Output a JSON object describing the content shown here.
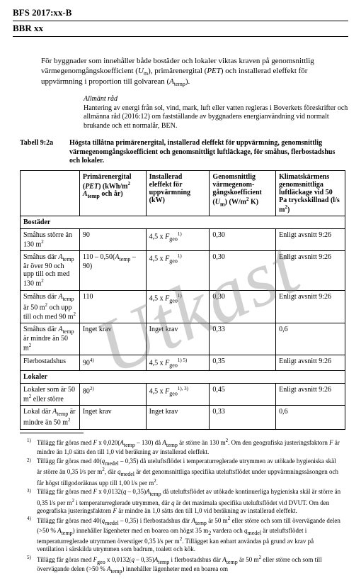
{
  "header": {
    "code": "BFS 2017:xx-B",
    "sub": "BBR xx"
  },
  "watermark": "Utkast",
  "intro": {
    "text": "För byggnader som innehåller både bostäder och lokaler viktas kraven på genomsnittlig värmegenomgångskoefficient (Um), primärenergital (PET) och installerad eleffekt för uppvärmning i proportion till golvarean (Atemp)."
  },
  "advice": {
    "title": "Allmänt råd",
    "body": "Hantering av energi från sol, vind, mark, luft eller vatten regleras i Boverkets föreskrifter och allmänna råd (2016:12) om fastställande av byggnadens energianvändning vid normalt brukande och ett normalår, BEN."
  },
  "table": {
    "label": "Tabell 9:2a",
    "caption": "Högsta tillåtna primärenergital, installerad eleffekt för uppvärmning, genomsnittlig värmegenomgångskoefficient och genomsnittligt luftläckage, för småhus, flerbostadshus och lokaler.",
    "headers": {
      "c1": "",
      "c2": "Primärenergital (PET) (kWh/m² Atemp och år)",
      "c3": "Installerad eleffekt för uppvärmning (kW)",
      "c4": "Genomsnittlig värmegenom­gångskoeffi­cient (Um) (W/m² K)",
      "c5": "Klimatskärmens genomsnittliga luftläckage vid 50 Pa tryck­skillnad (l/s m²)"
    },
    "sections": {
      "bostader": "Bostäder",
      "lokaler": "Lokaler"
    },
    "rows": [
      {
        "c1": "Småhus större än 130 m²",
        "c2": "90",
        "c3": "4,5 x Fgeo 1)",
        "c4": "0,30",
        "c5": "Enligt avsnitt 9:26"
      },
      {
        "c1": "Småhus där Atemp är över 90 och upp till och med 130 m²",
        "c2": "110 – 0,50(Atemp – 90)",
        "c3": "4,5 x Fgeo 1)",
        "c4": "0,30",
        "c5": "Enligt avsnitt 9:26"
      },
      {
        "c1": "Småhus där Atemp är 50 m² och upp till och med 90 m²",
        "c2": "110",
        "c3": "4,5 x Fgeo 1)",
        "c4": "0,30",
        "c5": "Enligt avsnitt 9:26"
      },
      {
        "c1": "Småhus där Atemp är mindre än 50 m²",
        "c2": "Inget krav",
        "c3": "Inget krav",
        "c4": "0,33",
        "c5": "0,6"
      },
      {
        "c1": "Flerbostadshus",
        "c2": "90 4)",
        "c3": "4,5 x Fgeo 1) 5)",
        "c4": "0,35",
        "c5": "Enligt avsnitt 9:26"
      }
    ],
    "rows2": [
      {
        "c1": "Lokaler som är 50 m² eller större",
        "c2": "80 2)",
        "c3": "4,5 x Fgeo 1), 3)",
        "c4": "0,45",
        "c5": "Enligt avsnitt 9:26"
      },
      {
        "c1": "Lokal där Atemp är mindre än 50 m²",
        "c2": "Inget krav",
        "c3": "Inget krav",
        "c4": "0,33",
        "c5": "0,6"
      }
    ]
  },
  "footnotes": {
    "n1": "Tillägg får göras med F x 0,020(Atemp – 130) då Atemp är större än 130 m². Om den geografiska justeringsfaktorn F är mindre än 1,0 sätts den till 1,0 vid beräkning av installerad eleffekt.",
    "n2": "Tillägg får göras med 40(qmedel – 0,35) då uteluftsflödet i temperaturreglerade utrymmen av utökade hygieniska skäl är större än 0,35 l/s per m², där qmedel är det genomsnittliga specifika uteluftsflödet under uppvärmningssäsongen och får högst tillgodoräknas upp till 1,00 l/s per m².",
    "n3": "Tillägg får göras med F x 0,0132(q – 0,35)Atemp då uteluftsflödet av utökade kontinuerliga hygieniska skäl är större än 0,35 l/s per m² i temperaturreglerade utrymmen, där q är det maximala specifika uteluftsflödet vid DVUT. Om den geografiska justeringsfaktorn F är mindre än 1,0 sätts den till 1,0 vid beräkning av installerad eleffekt.",
    "n4": "Tillägg får göras med 40(qmedel – 0,35) i flerbostadshus där Atemp är 50 m² eller större och som till övervägande delen (>50 % Atemp) innehåller lägenheter med en boarea om högst 35 m², vardera och qmedel är uteluftsflödet i temperaturreglerade utrymmen överstiger 0,35 l/s per m². Tillägget kan enbart användas på grund av krav på ventilation i särskilda utrymmen som badrum, toalett och kök.",
    "n5": "Tillägg får göras med Fgeo x 0,0132(q – 0,35)Atemp i flerbostadshus där Atemp är 50 m² eller större och som till övervägande delen (>50 % Atemp) innehåller lägenheter med en boarea om"
  }
}
